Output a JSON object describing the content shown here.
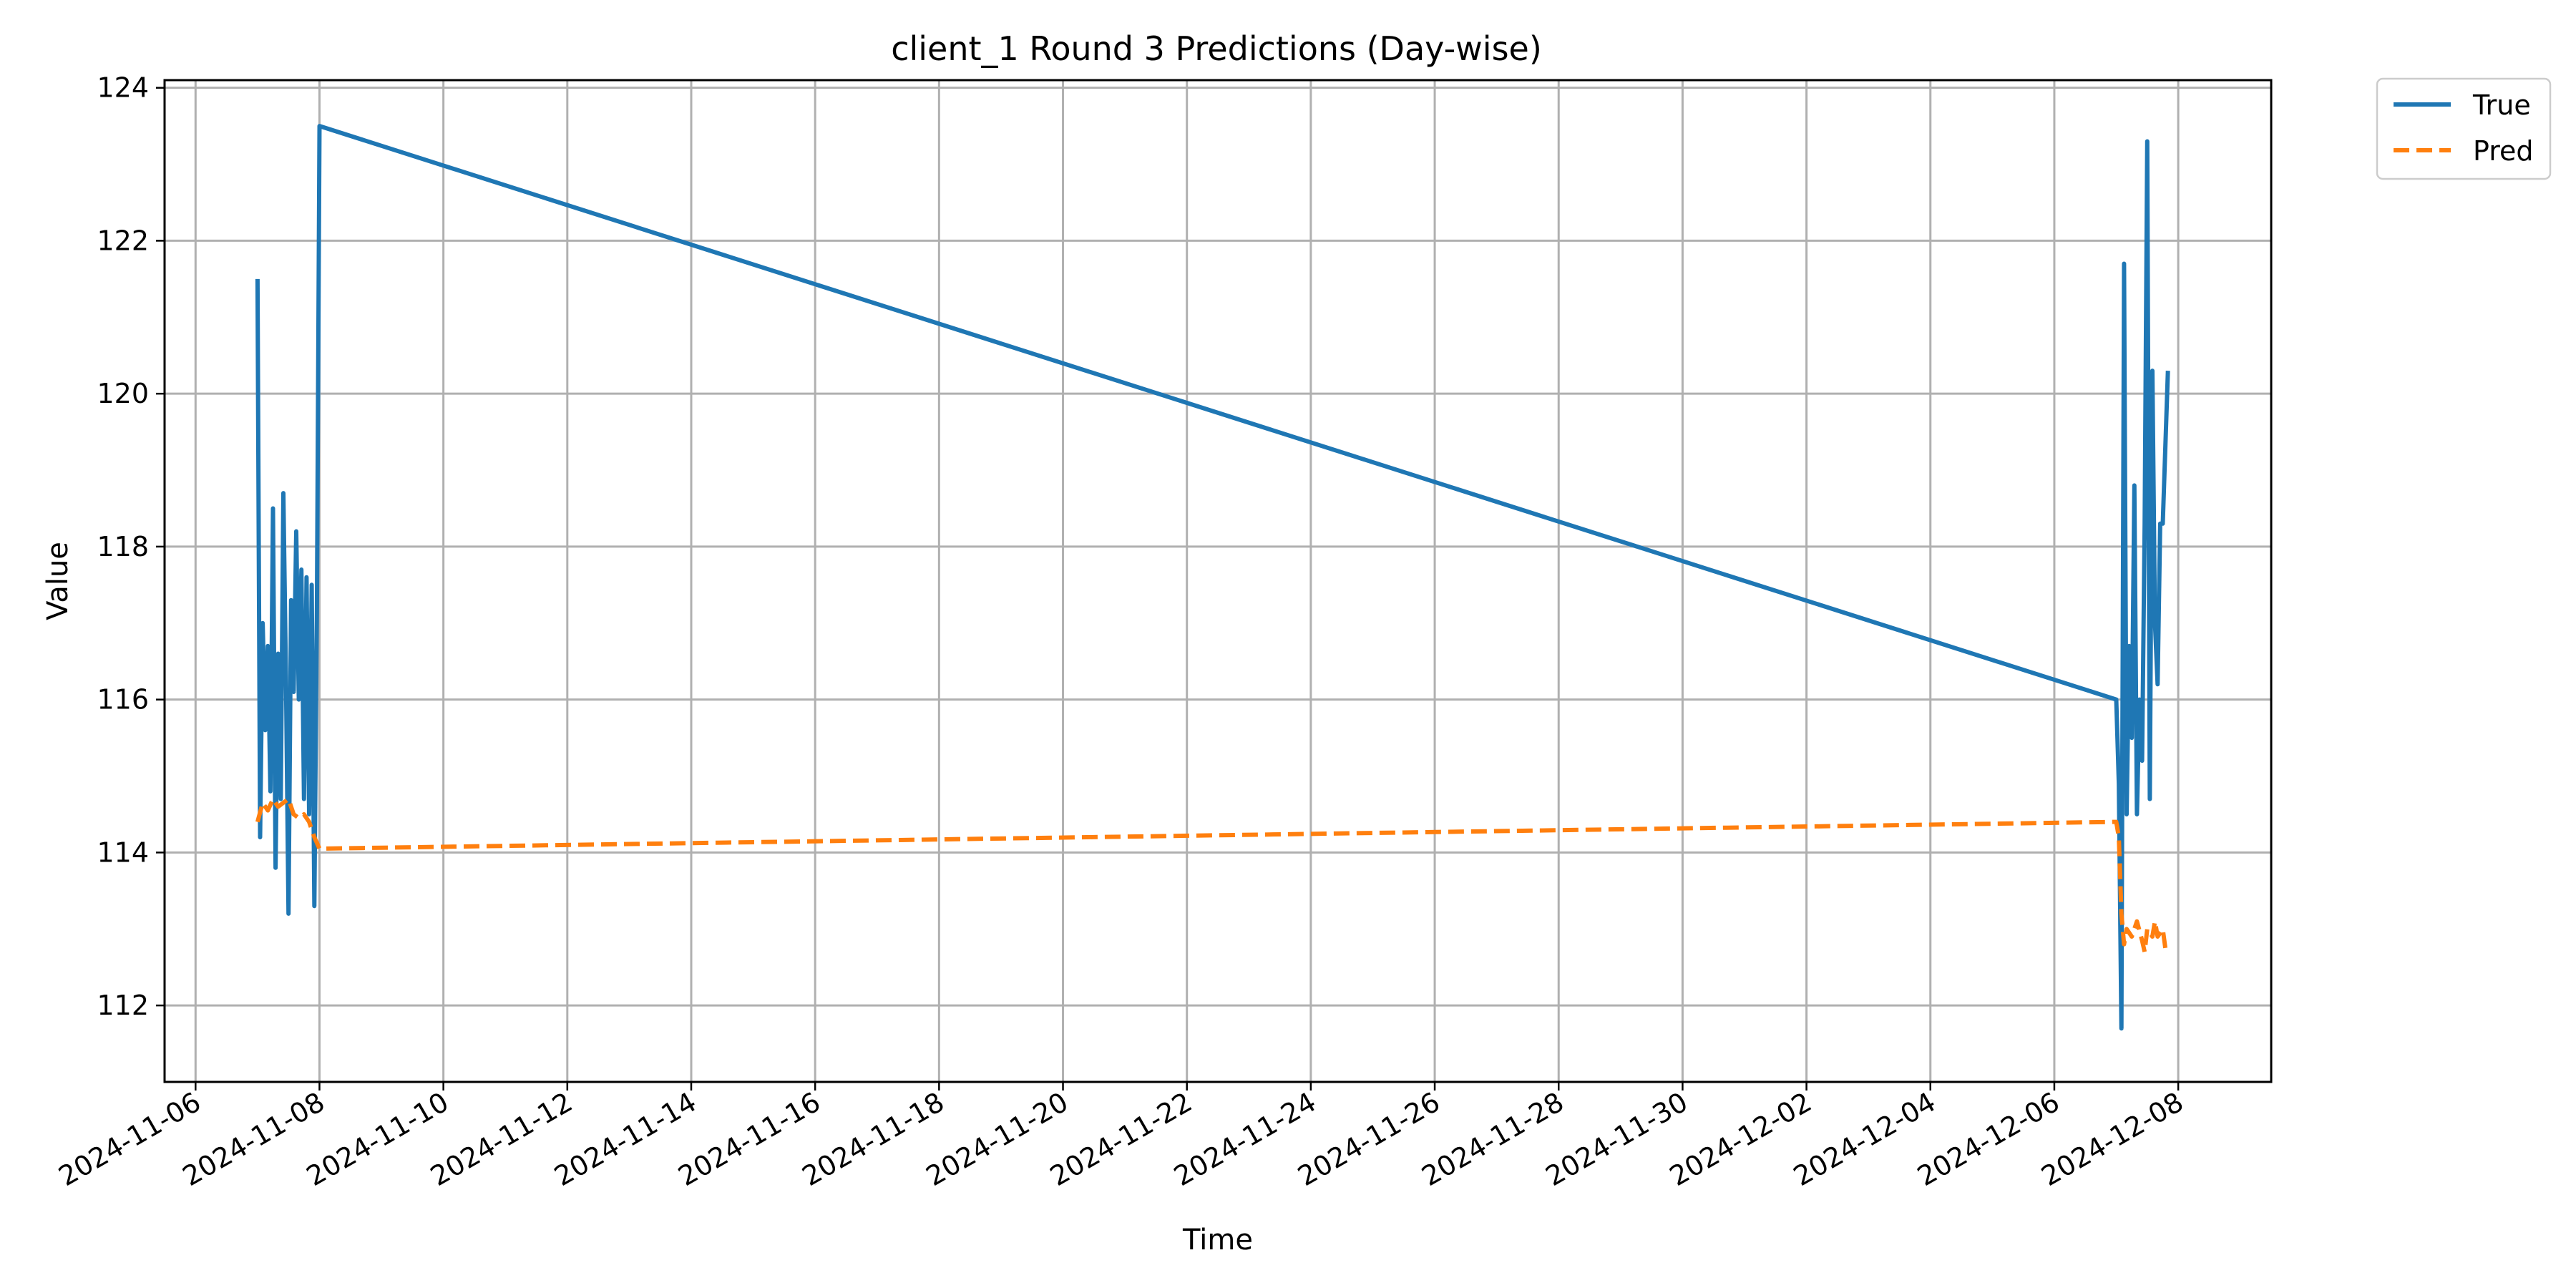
{
  "chart_data": {
    "type": "line",
    "title": "client_1 Round 3 Predictions (Day-wise)",
    "xlabel": "Time",
    "ylabel": "Value",
    "x_type": "datetime",
    "xlim": [
      "2024-11-05T12:00",
      "2024-12-09T12:00"
    ],
    "ylim": [
      111,
      124.1
    ],
    "x_ticks": [
      "2024-11-06",
      "2024-11-08",
      "2024-11-10",
      "2024-11-12",
      "2024-11-14",
      "2024-11-16",
      "2024-11-18",
      "2024-11-20",
      "2024-11-22",
      "2024-11-24",
      "2024-11-26",
      "2024-11-28",
      "2024-11-30",
      "2024-12-02",
      "2024-12-04",
      "2024-12-06",
      "2024-12-08"
    ],
    "y_ticks": [
      "112",
      "114",
      "116",
      "118",
      "120",
      "122",
      "124"
    ],
    "grid": true,
    "legend_position": "outside top-right",
    "colors": {
      "True": "#1f77b4",
      "Pred": "#ff7f0e"
    },
    "series": [
      {
        "name": "True",
        "style": "solid",
        "points": [
          [
            "2024-11-07T00:00",
            121.5
          ],
          [
            "2024-11-07T01:00",
            114.2
          ],
          [
            "2024-11-07T02:00",
            117.0
          ],
          [
            "2024-11-07T03:00",
            115.6
          ],
          [
            "2024-11-07T04:00",
            116.7
          ],
          [
            "2024-11-07T05:00",
            114.8
          ],
          [
            "2024-11-07T06:00",
            118.5
          ],
          [
            "2024-11-07T07:00",
            113.8
          ],
          [
            "2024-11-07T08:00",
            116.6
          ],
          [
            "2024-11-07T09:00",
            114.7
          ],
          [
            "2024-11-07T10:00",
            118.7
          ],
          [
            "2024-11-07T11:00",
            116.3
          ],
          [
            "2024-11-07T12:00",
            113.2
          ],
          [
            "2024-11-07T13:00",
            117.3
          ],
          [
            "2024-11-07T14:00",
            116.1
          ],
          [
            "2024-11-07T15:00",
            118.2
          ],
          [
            "2024-11-07T16:00",
            116.0
          ],
          [
            "2024-11-07T17:00",
            117.7
          ],
          [
            "2024-11-07T18:00",
            114.7
          ],
          [
            "2024-11-07T19:00",
            117.6
          ],
          [
            "2024-11-07T20:00",
            114.5
          ],
          [
            "2024-11-07T21:00",
            117.5
          ],
          [
            "2024-11-07T22:00",
            113.3
          ],
          [
            "2024-11-07T23:00",
            117.2
          ],
          [
            "2024-11-08T00:00",
            123.5
          ],
          [
            "2024-12-07T00:00",
            116.0
          ],
          [
            "2024-12-07T01:00",
            114.9
          ],
          [
            "2024-12-07T02:00",
            111.7
          ],
          [
            "2024-12-07T03:00",
            121.7
          ],
          [
            "2024-12-07T04:00",
            114.5
          ],
          [
            "2024-12-07T05:00",
            116.7
          ],
          [
            "2024-12-07T06:00",
            115.5
          ],
          [
            "2024-12-07T07:00",
            118.8
          ],
          [
            "2024-12-07T08:00",
            114.5
          ],
          [
            "2024-12-07T09:00",
            116.0
          ],
          [
            "2024-12-07T10:00",
            115.2
          ],
          [
            "2024-12-07T11:00",
            118.3
          ],
          [
            "2024-12-07T12:00",
            123.3
          ],
          [
            "2024-12-07T13:00",
            114.7
          ],
          [
            "2024-12-07T14:00",
            120.3
          ],
          [
            "2024-12-07T15:00",
            117.0
          ],
          [
            "2024-12-07T16:00",
            116.2
          ],
          [
            "2024-12-07T17:00",
            118.3
          ],
          [
            "2024-12-07T18:00",
            118.3
          ],
          [
            "2024-12-07T20:00",
            120.3
          ]
        ]
      },
      {
        "name": "Pred",
        "style": "dashed",
        "points": [
          [
            "2024-11-07T00:00",
            114.4
          ],
          [
            "2024-11-07T02:00",
            114.65
          ],
          [
            "2024-11-07T04:00",
            114.55
          ],
          [
            "2024-11-07T06:00",
            114.7
          ],
          [
            "2024-11-07T08:00",
            114.6
          ],
          [
            "2024-11-07T10:00",
            114.65
          ],
          [
            "2024-11-07T12:00",
            114.7
          ],
          [
            "2024-11-07T14:00",
            114.5
          ],
          [
            "2024-11-07T16:00",
            114.45
          ],
          [
            "2024-11-07T18:00",
            114.5
          ],
          [
            "2024-11-07T20:00",
            114.4
          ],
          [
            "2024-11-07T22:00",
            114.2
          ],
          [
            "2024-11-08T00:00",
            114.05
          ],
          [
            "2024-12-07T00:00",
            114.4
          ],
          [
            "2024-12-07T01:00",
            114.2
          ],
          [
            "2024-12-07T02:00",
            113.2
          ],
          [
            "2024-12-07T03:00",
            112.8
          ],
          [
            "2024-12-07T04:00",
            113.0
          ],
          [
            "2024-12-07T06:00",
            112.9
          ],
          [
            "2024-12-07T08:00",
            113.1
          ],
          [
            "2024-12-07T10:00",
            112.85
          ],
          [
            "2024-12-07T11:00",
            112.7
          ],
          [
            "2024-12-07T12:00",
            113.0
          ],
          [
            "2024-12-07T14:00",
            112.9
          ],
          [
            "2024-12-07T15:00",
            113.1
          ],
          [
            "2024-12-07T16:00",
            112.9
          ],
          [
            "2024-12-07T18:00",
            113.0
          ],
          [
            "2024-12-07T19:00",
            112.75
          ],
          [
            "2024-12-07T20:00",
            112.7
          ]
        ]
      }
    ]
  }
}
